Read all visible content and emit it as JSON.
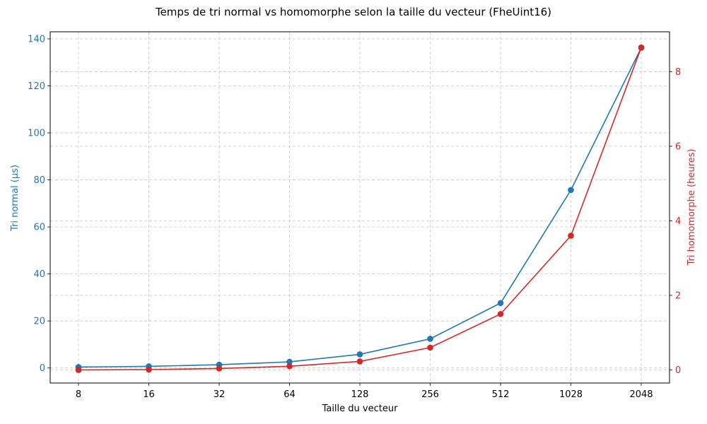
{
  "chart_data": {
    "type": "line",
    "title": "Temps de tri normal vs homomorphe selon la taille du vecteur (FheUint16)",
    "xlabel": "Taille du vecteur",
    "categories": [
      "8",
      "16",
      "32",
      "64",
      "128",
      "256",
      "512",
      "1028",
      "2048"
    ],
    "series": [
      {
        "name": "Tri normal (µs)",
        "axis": "left",
        "color": "#1f77b4",
        "values": [
          0.4,
          0.7,
          1.4,
          2.6,
          5.8,
          12.4,
          27.6,
          75.7,
          136.2
        ]
      },
      {
        "name": "Tri homomorphe (heures)",
        "axis": "right",
        "color": "#d62728",
        "values": [
          0.0,
          0.01,
          0.04,
          0.1,
          0.23,
          0.6,
          1.5,
          3.6,
          8.65
        ]
      }
    ],
    "y_left": {
      "label": "Tri normal (µs)",
      "range": [
        -6.4,
        143
      ],
      "ticks": [
        0,
        20,
        40,
        60,
        80,
        100,
        120,
        140
      ],
      "color": "#1f77b4"
    },
    "y_right": {
      "label": "Tri homomorphe (heures)",
      "range": [
        -0.35,
        9.07
      ],
      "ticks": [
        0,
        2,
        4,
        6,
        8
      ],
      "color": "#d62728"
    },
    "grid": true,
    "grid_style": "dashed",
    "marker": "circle"
  }
}
